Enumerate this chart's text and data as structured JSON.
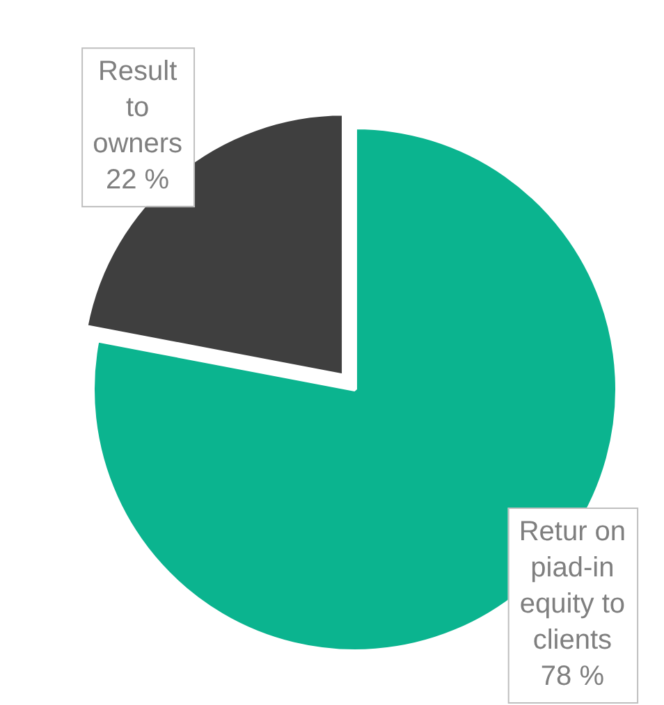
{
  "chart_data": {
    "type": "pie",
    "categories": [
      "Retur on piad-in equity to clients",
      "Result to owners"
    ],
    "values": [
      78,
      22
    ],
    "colors": [
      "#0bb48f",
      "#3f3f3f"
    ],
    "value_labels": [
      "78 %",
      "22 %"
    ],
    "legend": false
  }
}
